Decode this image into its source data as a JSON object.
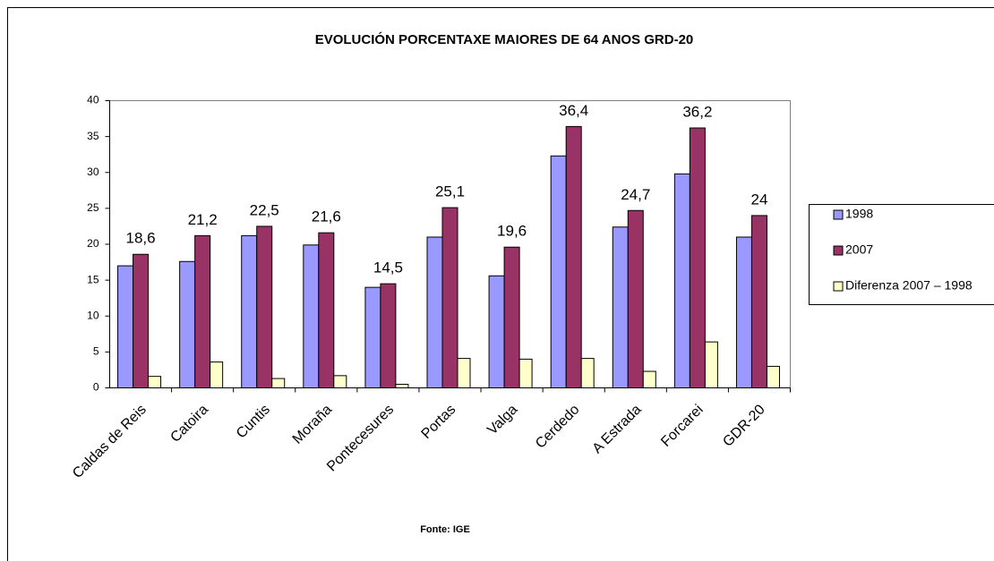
{
  "chart_data": {
    "type": "bar",
    "title": "EVOLUCIÓN PORCENTAXE MAIORES DE 64 ANOS GRD-20",
    "source": "Fonte: IGE",
    "categories": [
      "Caldas de Reis",
      "Catoira",
      "Cuntis",
      "Moraña",
      "Pontecesures",
      "Portas",
      "Valga",
      "Cerdedo",
      "A Estrada",
      "Forcarei",
      "GDR-20"
    ],
    "series": [
      {
        "name": "1998",
        "color": "#9999ff",
        "values": [
          17,
          17.6,
          21.2,
          19.9,
          14,
          21,
          15.6,
          32.3,
          22.4,
          29.8,
          21
        ]
      },
      {
        "name": "2007",
        "color": "#993366",
        "values": [
          18.6,
          21.2,
          22.5,
          21.6,
          14.5,
          25.1,
          19.6,
          36.4,
          24.7,
          36.2,
          24
        ],
        "value_labels": [
          "18,6",
          "21,2",
          "22,5",
          "21,6",
          "14,5",
          "25,1",
          "19,6",
          "36,4",
          "24,7",
          "36,2",
          "24"
        ]
      },
      {
        "name": "Diferenza 2007 – 1998",
        "color": "#ffffcc",
        "values": [
          1.6,
          3.6,
          1.3,
          1.7,
          0.5,
          4.1,
          4.0,
          4.1,
          2.3,
          6.4,
          3.0
        ]
      }
    ],
    "ylim": [
      0,
      40
    ],
    "yticks": [
      0,
      5,
      10,
      15,
      20,
      25,
      30,
      35,
      40
    ],
    "grid": false,
    "legend": "right"
  }
}
